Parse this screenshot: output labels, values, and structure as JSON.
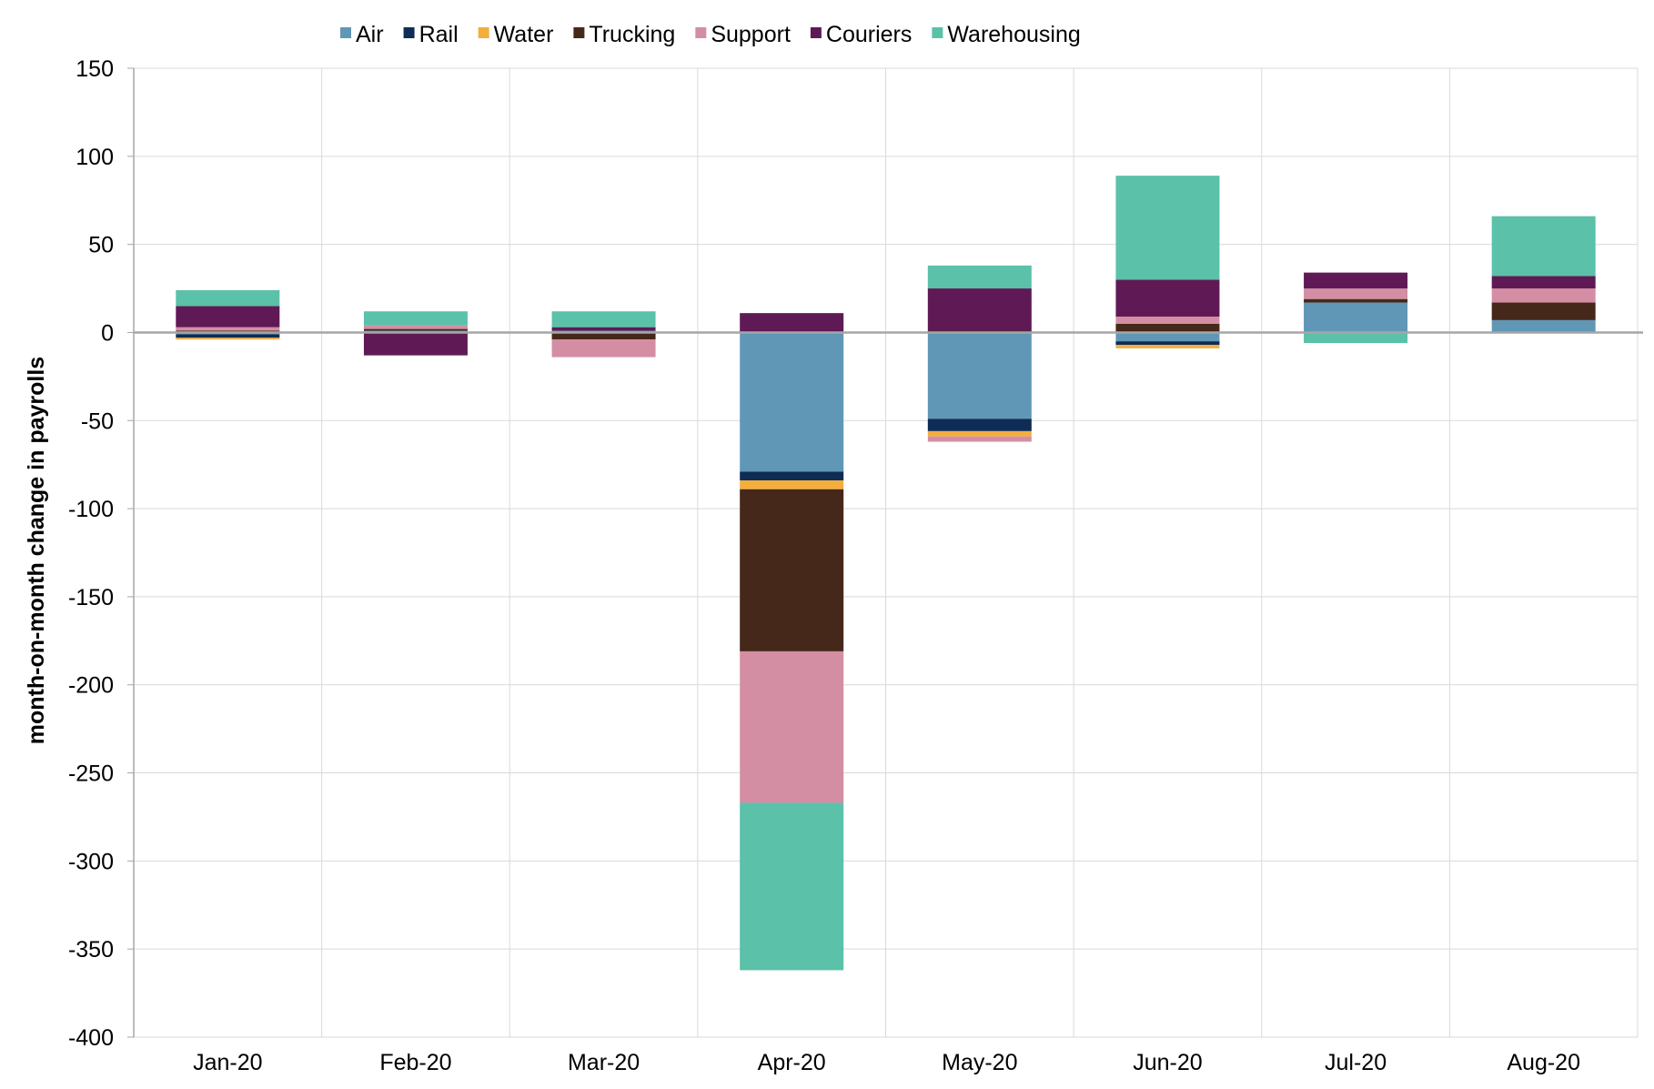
{
  "chart_data": {
    "type": "bar",
    "stacked": true,
    "title": "",
    "xlabel": "",
    "ylabel": "month-on-month change in payrolls",
    "ylim": [
      -400,
      150
    ],
    "yticks": [
      150,
      100,
      50,
      0,
      -50,
      -100,
      -150,
      -200,
      -250,
      -300,
      -350,
      -400
    ],
    "grid": true,
    "legend_position": "top",
    "categories": [
      "Jan-20",
      "Feb-20",
      "Mar-20",
      "Apr-20",
      "May-20",
      "Jun-20",
      "Jul-20",
      "Aug-20"
    ],
    "series": [
      {
        "name": "Air",
        "color": "#6097b7",
        "values": [
          -1,
          1,
          1,
          -79,
          -49,
          -5,
          17,
          7
        ]
      },
      {
        "name": "Rail",
        "color": "#0e2c55",
        "values": [
          -2,
          0,
          0,
          -5,
          -7,
          -2,
          0,
          0
        ]
      },
      {
        "name": "Water",
        "color": "#f3ae3d",
        "values": [
          -1,
          0,
          0,
          -5,
          -3,
          -2,
          0,
          0
        ]
      },
      {
        "name": "Trucking",
        "color": "#45281a",
        "values": [
          1,
          1,
          -4,
          -92,
          1,
          5,
          2,
          10
        ]
      },
      {
        "name": "Support",
        "color": "#d38ea4",
        "values": [
          2,
          2,
          -10,
          -86,
          -3,
          4,
          6,
          8
        ]
      },
      {
        "name": "Couriers",
        "color": "#5f1a56",
        "values": [
          12,
          -13,
          2,
          11,
          24,
          21,
          9,
          7
        ]
      },
      {
        "name": "Warehousing",
        "color": "#5bc1a8",
        "values": [
          9,
          8,
          9,
          -95,
          13,
          59,
          -6,
          34
        ]
      }
    ]
  }
}
